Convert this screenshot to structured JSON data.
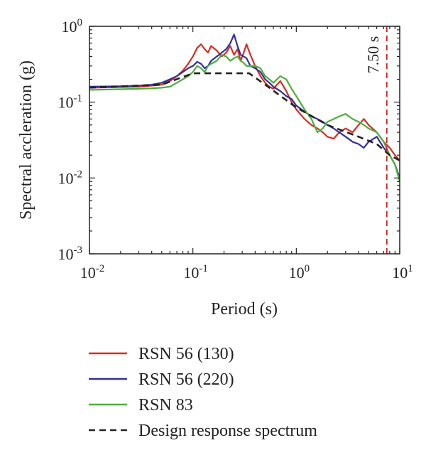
{
  "chart_data": {
    "type": "line",
    "title": "",
    "xlabel": "Period (s)",
    "ylabel": "Spectral accleration (g)",
    "xscale": "log",
    "yscale": "log",
    "xlim": [
      0.01,
      10
    ],
    "ylim": [
      0.001,
      1
    ],
    "x_ticks": [
      {
        "value": 0.01,
        "base": "10",
        "exp": "-2"
      },
      {
        "value": 0.1,
        "base": "10",
        "exp": "-1"
      },
      {
        "value": 1,
        "base": "10",
        "exp": "0"
      },
      {
        "value": 10,
        "base": "10",
        "exp": "1"
      }
    ],
    "y_ticks": [
      {
        "value": 0.001,
        "base": "10",
        "exp": "-3"
      },
      {
        "value": 0.01,
        "base": "10",
        "exp": "-2"
      },
      {
        "value": 0.1,
        "base": "10",
        "exp": "-1"
      },
      {
        "value": 1,
        "base": "10",
        "exp": "0"
      }
    ],
    "legend_position": "below",
    "annotation": {
      "text": "7.50 s",
      "x": 7.5,
      "color": "#cc2222",
      "style": "dashed"
    },
    "series": [
      {
        "name": "RSN 56 (130)",
        "color": "#d62d20",
        "dash": "solid",
        "x": [
          0.01,
          0.02,
          0.03,
          0.04,
          0.05,
          0.06,
          0.07,
          0.08,
          0.09,
          0.1,
          0.11,
          0.12,
          0.13,
          0.14,
          0.15,
          0.17,
          0.19,
          0.21,
          0.23,
          0.25,
          0.27,
          0.29,
          0.31,
          0.33,
          0.36,
          0.4,
          0.45,
          0.5,
          0.55,
          0.6,
          0.7,
          0.8,
          0.9,
          1.0,
          1.2,
          1.4,
          1.6,
          1.8,
          2.0,
          2.3,
          2.6,
          3.0,
          3.5,
          4.0,
          4.5,
          5.0,
          6.0,
          7.0,
          8.0,
          9.0,
          10.0
        ],
        "y": [
          0.155,
          0.158,
          0.16,
          0.165,
          0.17,
          0.19,
          0.22,
          0.26,
          0.32,
          0.4,
          0.52,
          0.58,
          0.5,
          0.45,
          0.55,
          0.48,
          0.4,
          0.45,
          0.55,
          0.42,
          0.5,
          0.35,
          0.45,
          0.58,
          0.42,
          0.3,
          0.22,
          0.18,
          0.16,
          0.15,
          0.19,
          0.14,
          0.1,
          0.08,
          0.06,
          0.05,
          0.045,
          0.04,
          0.035,
          0.033,
          0.04,
          0.045,
          0.04,
          0.05,
          0.06,
          0.05,
          0.04,
          0.03,
          0.025,
          0.02,
          0.017
        ]
      },
      {
        "name": "RSN 56 (220)",
        "color": "#33309a",
        "dash": "solid",
        "x": [
          0.01,
          0.02,
          0.03,
          0.04,
          0.05,
          0.06,
          0.07,
          0.08,
          0.09,
          0.1,
          0.11,
          0.12,
          0.13,
          0.14,
          0.15,
          0.17,
          0.19,
          0.21,
          0.23,
          0.25,
          0.27,
          0.29,
          0.31,
          0.33,
          0.36,
          0.4,
          0.45,
          0.5,
          0.55,
          0.6,
          0.7,
          0.8,
          0.9,
          1.0,
          1.2,
          1.4,
          1.6,
          1.8,
          2.0,
          2.3,
          2.6,
          3.0,
          3.5,
          4.0,
          4.5,
          5.0,
          6.0,
          7.0,
          8.0,
          9.0,
          10.0
        ],
        "y": [
          0.16,
          0.162,
          0.165,
          0.17,
          0.18,
          0.2,
          0.22,
          0.25,
          0.28,
          0.3,
          0.34,
          0.32,
          0.28,
          0.3,
          0.35,
          0.4,
          0.45,
          0.5,
          0.6,
          0.78,
          0.55,
          0.42,
          0.4,
          0.38,
          0.3,
          0.28,
          0.25,
          0.2,
          0.18,
          0.16,
          0.14,
          0.12,
          0.11,
          0.09,
          0.075,
          0.065,
          0.06,
          0.055,
          0.05,
          0.045,
          0.04,
          0.035,
          0.03,
          0.028,
          0.025,
          0.03,
          0.035,
          0.025,
          0.02,
          0.015,
          0.01
        ]
      },
      {
        "name": "RSN 83",
        "color": "#4caf3c",
        "dash": "solid",
        "x": [
          0.01,
          0.02,
          0.03,
          0.04,
          0.05,
          0.06,
          0.07,
          0.08,
          0.09,
          0.1,
          0.11,
          0.12,
          0.13,
          0.14,
          0.15,
          0.17,
          0.19,
          0.21,
          0.23,
          0.25,
          0.27,
          0.29,
          0.31,
          0.33,
          0.36,
          0.4,
          0.45,
          0.5,
          0.55,
          0.6,
          0.7,
          0.8,
          0.9,
          1.0,
          1.2,
          1.4,
          1.6,
          1.8,
          2.0,
          2.3,
          2.6,
          3.0,
          3.5,
          4.0,
          4.5,
          5.0,
          6.0,
          7.0,
          8.0,
          9.0,
          10.0
        ],
        "y": [
          0.145,
          0.148,
          0.15,
          0.152,
          0.155,
          0.16,
          0.18,
          0.2,
          0.22,
          0.25,
          0.3,
          0.28,
          0.25,
          0.3,
          0.32,
          0.35,
          0.42,
          0.4,
          0.35,
          0.38,
          0.4,
          0.35,
          0.33,
          0.3,
          0.3,
          0.3,
          0.28,
          0.22,
          0.2,
          0.18,
          0.22,
          0.2,
          0.15,
          0.12,
          0.08,
          0.06,
          0.04,
          0.045,
          0.055,
          0.06,
          0.065,
          0.07,
          0.06,
          0.055,
          0.05,
          0.045,
          0.04,
          0.03,
          0.02,
          0.015,
          0.009
        ]
      },
      {
        "name": "Design response spectrum",
        "color": "#222222",
        "dash": "dashed",
        "x": [
          0.01,
          0.05,
          0.1,
          0.35,
          0.5,
          1.0,
          2.0,
          4.0,
          6.0,
          8.0,
          10.0
        ],
        "y": [
          0.155,
          0.17,
          0.24,
          0.24,
          0.17,
          0.085,
          0.05,
          0.035,
          0.028,
          0.02,
          0.017
        ]
      }
    ]
  }
}
